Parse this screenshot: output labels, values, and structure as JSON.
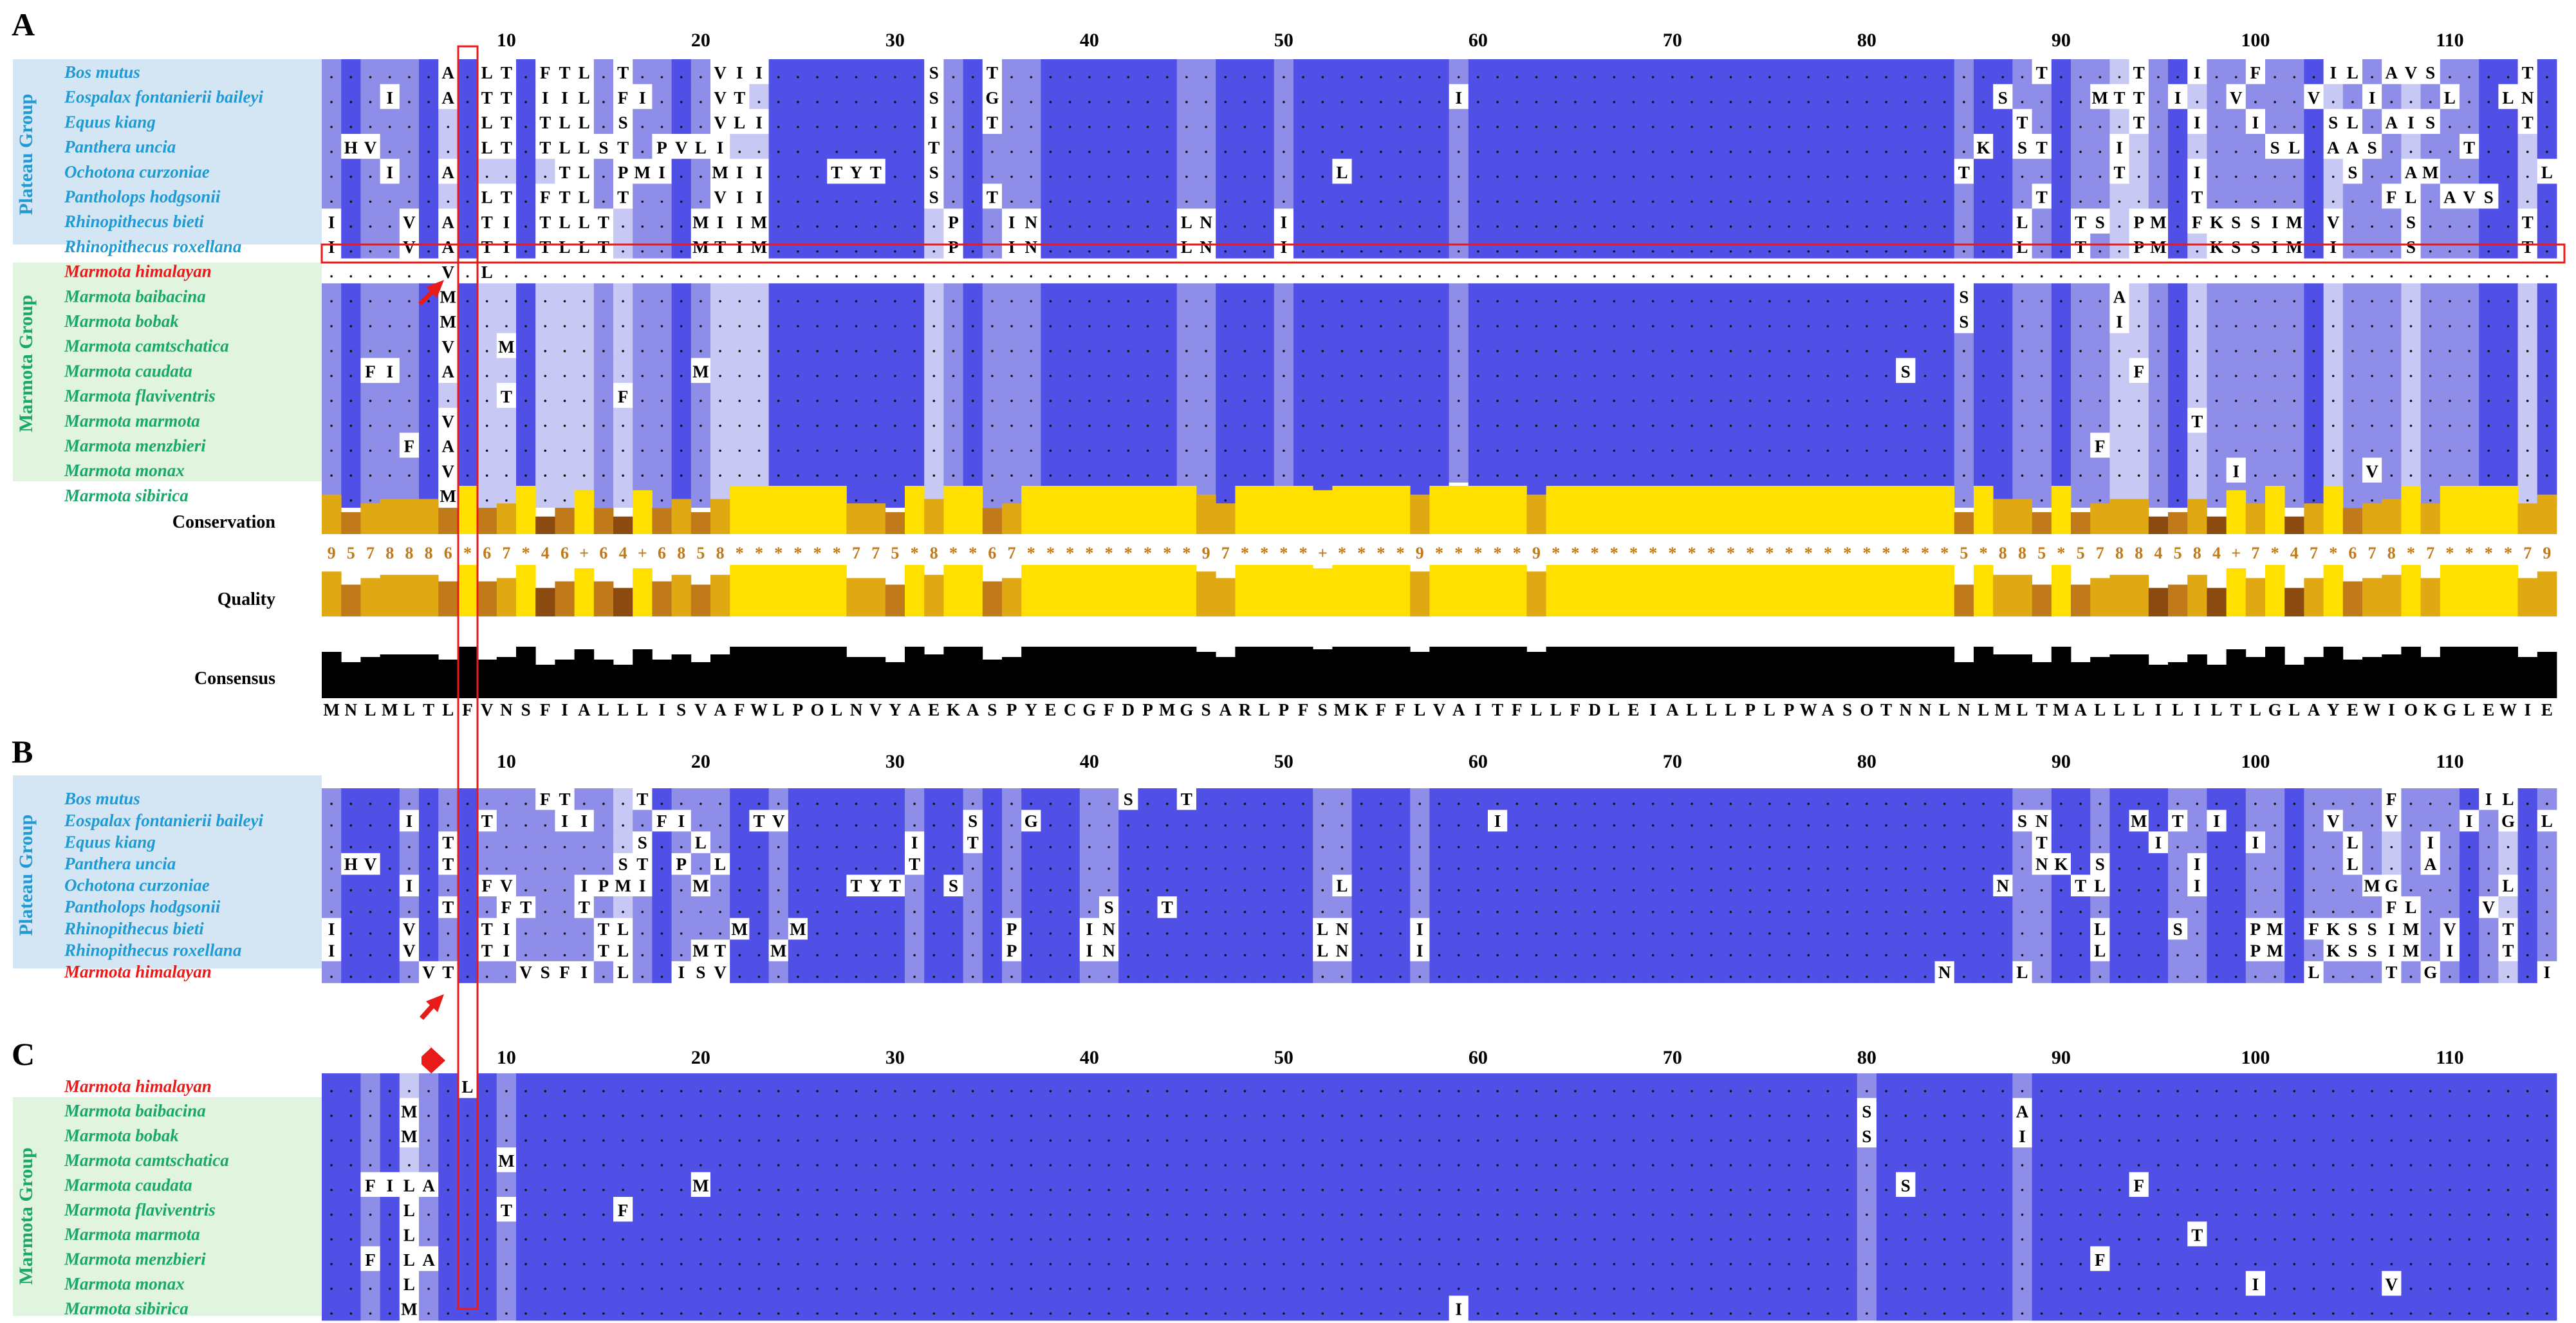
{
  "colors": {
    "dark": "#5050e6",
    "mid": "#8e8ee8",
    "light": "#c8c8f4",
    "plateau_text": "#1e9ad4",
    "marmota_text": "#1aa86a",
    "himalayan_text": "#e81a1a",
    "plateau_bg": "#d4e6f4",
    "marmota_bg": "#e0f4e0",
    "highlight": "#e81a1a",
    "gold": "#ffe000",
    "orange": "#c07a1a",
    "brown": "#8a4a10",
    "consensus_bar": "#000000"
  },
  "ruler": [
    "10",
    "20",
    "30",
    "40",
    "50",
    "60",
    "70",
    "80",
    "90",
    "100",
    "110"
  ],
  "panel_labels": [
    "A",
    "B",
    "C"
  ],
  "group_labels": {
    "plateau": "Plateau Group",
    "marmota": "Marmota Group"
  },
  "track_labels": {
    "conservation": "Conservation",
    "quality": "Quality",
    "consensus": "Consensus"
  },
  "conservation_scores": "9578886*67*46+64+6858******775*8**67*********97****+****9*****9*********************5*885*57884584+7*47*678*7****79*******6**",
  "consensus_sequence": "MNLMLTLFVNSFIALLLISVAFWLPOLNVYAEKASPYECGFDPMGSARLPFSMKFFLVAITFLLFDLEIALLLPLPWASOTNNLNLMLTMALLLILILTLGLAYEWIOKGLEWIE",
  "panels": [
    {
      "label": "A",
      "rows": [
        {
          "name": "Bos mutus",
          "group": "plateau",
          "seq": "......A.LT.FTL.T....VII........S..T.....................................................T....T..I..F...IL.AVS....T......T"
        },
        {
          "name": "Eospalax fontanierii baileyi",
          "group": "plateau",
          "seq": "...I..A.TT.IIL.FI...VT.........S..G.......................I...........................S....MTT.I..V...V..I...L..LN.....T"
        },
        {
          "name": "Equus kiang",
          "group": "plateau",
          "seq": "........LT.TLL.S....VLI........I..T....................................................T.....T..I..I...SL.AIS....T......T"
        },
        {
          "name": "Panthera uncia",
          "group": "plateau",
          "seq": ".HV.....LT.TLLST.PVLI..........T.....................................................K.ST...I.......SL.AAS....T......T"
        },
        {
          "name": "Ochotona curzoniae",
          "group": "plateau",
          "seq": "...I..A.....TL.PMI..MII...TYT..S....................L...............................T.......T...I.......S..AM.....L......V"
        },
        {
          "name": "Pantholops hodgsonii",
          "group": "plateau",
          "seq": "........LT.FTL.T....VII........S..T.....................................................T.......T.........FL.AVS....T......T"
        },
        {
          "name": "Rhinopithecus bieti",
          "group": "plateau",
          "seq": "I...V.A.TI.TLLT....MIIM.........P..IN.......LN...I.....................................L..TS.PM.FKSSIM.V...S.....T........"
        },
        {
          "name": "Rhinopithecus roxellana",
          "group": "plateau",
          "seq": "I...V.A.TI.TLLT....MTIM.........P..IN.......LN...I.....................................L..T..PM..KSSIM.I...S.....T......N"
        },
        {
          "name": "Marmota himalayan",
          "group": "himalayan",
          "seq": "......V.L........................................................................................................."
        },
        {
          "name": "Marmota baibacina",
          "group": "marmota",
          "seq": "......M.............................................................................S.......A........................"
        },
        {
          "name": "Marmota bobak",
          "group": "marmota",
          "seq": "......M.............................................................................S.......I........................"
        },
        {
          "name": "Marmota camtschatica",
          "group": "marmota",
          "seq": "......V..M..........................................................................................................."
        },
        {
          "name": "Marmota caudata",
          "group": "marmota",
          "seq": "..FI..A............M.............................................................S...........F......................"
        },
        {
          "name": "Marmota flaviventris",
          "group": "marmota",
          "seq": ".........T.....F......................................................................................................"
        },
        {
          "name": "Marmota marmota",
          "group": "marmota",
          "seq": "......V.........................................................................................T.................."
        },
        {
          "name": "Marmota menzbieri",
          "group": "marmota",
          "seq": "....F.A....................................................................................F......................"
        },
        {
          "name": "Marmota monax",
          "group": "marmota",
          "seq": "......V...........................................................................................I......V........"
        },
        {
          "name": "Marmota sibirica",
          "group": "marmota",
          "seq": "......M...................................................I..................................................................."
        }
      ]
    },
    {
      "label": "B",
      "rows": [
        {
          "name": "Bos mutus",
          "group": "plateau",
          "seq": "...........FT...T........................S..T.............................................................F....IL...V..."
        },
        {
          "name": "Eospalax fontanierii baileyi",
          "group": "plateau",
          "seq": "....I...T...II...FI...TV.........S..G.......................I..........................SN....M.T.I.....V..V...I.G.L..LN."
        },
        {
          "name": "Equus kiang",
          "group": "plateau",
          "seq": "......T.........S..L..........I..T......................................................T.....I....I....L...I..........."
        },
        {
          "name": "Panthera uncia",
          "group": "plateau",
          "seq": ".HV...T........ST.P.L.........T.........................................................NK.S....I.......L...A.........."
        },
        {
          "name": "Ochotona curzoniae",
          "group": "plateau",
          "seq": "....I...FV...IPMI..M.......TYT..S...................L.................................N...TL....I........MG.....L.....V"
        },
        {
          "name": "Pantholops hodgsonii",
          "group": "plateau",
          "seq": "......T..FT..T..........................S..T..............................................................FL...V......."
        },
        {
          "name": "Rhinopithecus bieti",
          "group": "plateau",
          "seq": "I...V...TI....TL.....M..M..........P...IN..........LN...I..................................L...S...PM.FKSSIM.V..T......I"
        },
        {
          "name": "Rhinopithecus roxellana",
          "group": "plateau",
          "seq": "I...V...TI....TL...MT..M...........P...IN..........LN...I..................................L.......PM..KSSIM.I..T......N"
        },
        {
          "name": "Marmota himalayan",
          "group": "himalayan",
          "seq": ".....VT...VSFI.L..ISV..............................................................N...L..............L...T.G.....I...I"
        }
      ]
    },
    {
      "label": "C",
      "rows": [
        {
          "name": "Marmota himalayan",
          "group": "himalayan",
          "seq": ".......L.............................................................................................................."
        },
        {
          "name": "Marmota baibacina",
          "group": "marmota",
          "seq": "....M..........................................................................S.......A........................."
        },
        {
          "name": "Marmota bobak",
          "group": "marmota",
          "seq": "....M..........................................................................S.......I........................."
        },
        {
          "name": "Marmota camtschatica",
          "group": "marmota",
          "seq": ".........M........................................................................................................"
        },
        {
          "name": "Marmota caudata",
          "group": "marmota",
          "seq": "..FILA.............M.............................................................S...........F....................."
        },
        {
          "name": "Marmota flaviventris",
          "group": "marmota",
          "seq": "....L....T.....F.................................................................................................."
        },
        {
          "name": "Marmota marmota",
          "group": "marmota",
          "seq": "....L...........................................................................................T................."
        },
        {
          "name": "Marmota menzbieri",
          "group": "marmota",
          "seq": "..F.LA.....................................................................................F......................"
        },
        {
          "name": "Marmota monax",
          "group": "marmota",
          "seq": "....L..............................................................................................I......V........"
        },
        {
          "name": "Marmota sibirica",
          "group": "marmota",
          "seq": "....M.....................................................I..................................................................."
        }
      ]
    }
  ]
}
